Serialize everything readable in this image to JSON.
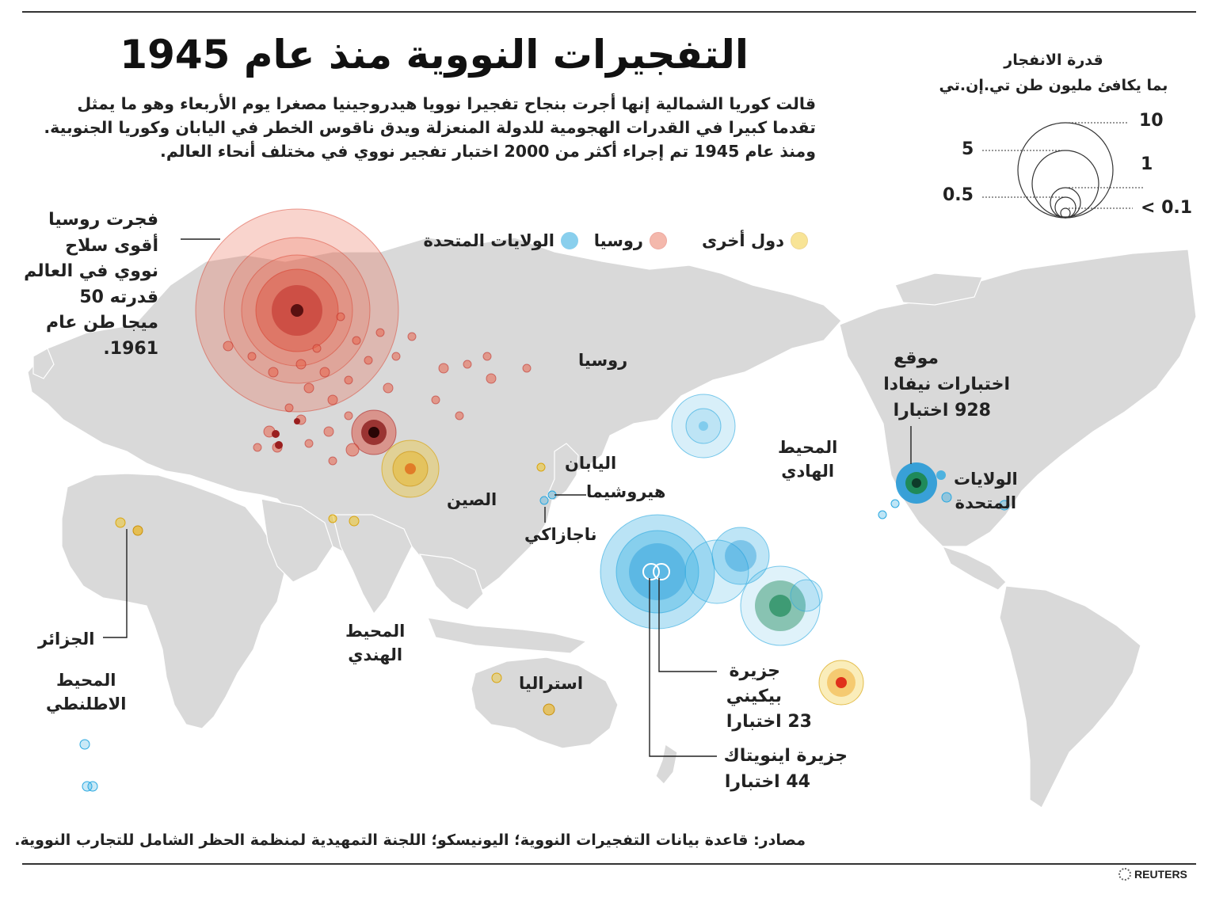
{
  "title": "التفجيرات النووية منذ عام 1945",
  "intro": [
    "قالت كوريا الشمالية إنها أجرت بنجاح تفجيرا نوويا هيدروجينيا مصغرا يوم الأربعاء وهو ما يمثل",
    "تقدما كبيرا في القدرات الهجومية للدولة المنعزلة ويدق ناقوس الخطر في اليابان وكوريا الجنوبية.",
    "ومنذ عام 1945 تم إجراء أكثر من 2000 اختبار تفجير نووي في مختلف أنحاء العالم."
  ],
  "scale_legend": {
    "title_line1": "قدرة الانفجار",
    "title_line2": "بما يكافئ مليون طن تي.إن.تي",
    "labels": {
      "ten": "10",
      "five": "5",
      "one": "1",
      "half": "0.5",
      "tenth": "< 0.1"
    }
  },
  "key": {
    "usa": {
      "label": "الولايات المتحدة",
      "color": "#29a8e0"
    },
    "russia": {
      "label": "روسيا",
      "color": "#e8634a"
    },
    "other": {
      "label": "دول أخرى",
      "color": "#f0c419"
    }
  },
  "colors": {
    "land": "#d9d9d9",
    "ocean": "#ffffff",
    "border": "#ffffff",
    "usa": "#29a8e0",
    "russia": "#d9412f",
    "other": "#e9b21a",
    "green": "#1f8a5a"
  },
  "annotations": {
    "tsar": [
      "فجرت روسيا",
      "أقوى سلاح",
      "نووي في العالم",
      "قدرته 50",
      "ميجا طن عام",
      "1961."
    ],
    "nevada": [
      "موقع",
      "اختبارات نيفادا",
      "928 اختبارا"
    ],
    "bikini": [
      "جزيرة",
      "بيكيني",
      "23 اختبارا"
    ],
    "enewetak": [
      "جزيرة اينويتاك",
      "44 اختبارا"
    ]
  },
  "places": {
    "russia": "روسيا",
    "china": "الصين",
    "japan": "اليابان",
    "hiroshima": "هيروشيما",
    "nagasaki": "ناجازاكي",
    "pacific": [
      "المحيط",
      "الهادي"
    ],
    "indian": [
      "المحيط",
      "الهندي"
    ],
    "atlantic": [
      "المحيط",
      "الاطلنطي"
    ],
    "algeria": "الجزائر",
    "australia": "استراليا",
    "usa": [
      "الولايات",
      "المتحدة"
    ]
  },
  "sources": "مصادر: قاعدة بيانات التفجيرات النووية؛ اليونيسكو؛ اللجنة التمهيدية لمنظمة الحظر الشامل للتجارب النووية.",
  "credit": "REUTERS"
}
